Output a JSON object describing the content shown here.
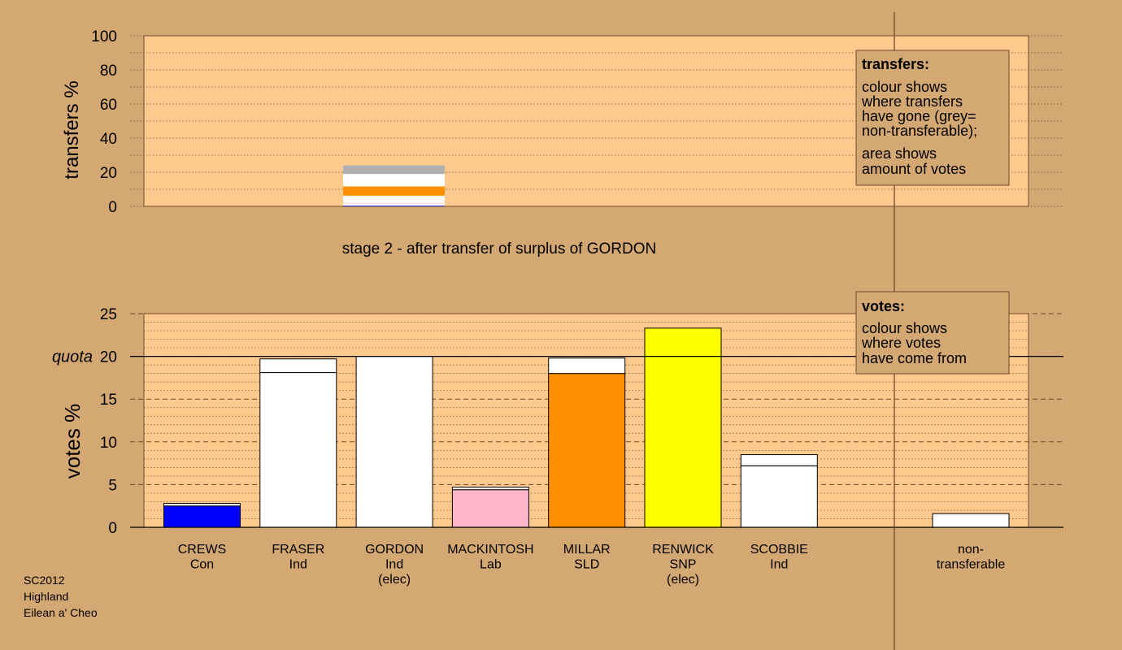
{
  "chart_data": {
    "type": "bar",
    "stage_title": "stage 2 - after transfer of surplus of GORDON",
    "colors": {
      "background": "#d4a872",
      "panel": "#fec98c",
      "outline": "#6e4a2e",
      "grey": "#b0b0b0",
      "white": "#ffffff"
    },
    "transfers_chart": {
      "ylabel": "transfers %",
      "ylim": [
        0,
        100
      ],
      "yticks": [
        "0",
        "20",
        "40",
        "60",
        "80",
        "100"
      ],
      "source": "GORDON",
      "segments": [
        {
          "recipient": "CREWS",
          "value": 0.4,
          "color": "#0000ff"
        },
        {
          "recipient": "FRASER",
          "value": 1.4,
          "color": "#ffffff"
        },
        {
          "recipient": "MACKINTOSH",
          "value": 0.3,
          "color": "#ffb6c8"
        },
        {
          "recipient": "MILLAR",
          "value": 4.2,
          "color": "#ffffff"
        },
        {
          "recipient": "MILLAR",
          "value": 5.4,
          "color": "#ff9000"
        },
        {
          "recipient": "SCOBBIE",
          "value": 3.6,
          "color": "#ffffff"
        },
        {
          "recipient": "non-transferable",
          "value": 1.6,
          "color": "#ffffff"
        },
        {
          "recipient": "non-transferable",
          "value": 2.1,
          "color": "#ffffff"
        },
        {
          "recipient": "non-transferable",
          "value": 5.0,
          "color": "#b0b0b0"
        }
      ],
      "legend": {
        "title": "transfers:",
        "lines": [
          "colour shows",
          "where transfers",
          "have gone (grey=",
          "non-transferable);",
          "area shows",
          "amount of votes"
        ]
      }
    },
    "votes_chart": {
      "ylabel": "votes %",
      "ylim": [
        0,
        25
      ],
      "yticks": [
        "0",
        "5",
        "10",
        "15",
        "20",
        "25"
      ],
      "quota": 20,
      "quota_label": "quota",
      "candidates": [
        {
          "name": "CREWS",
          "party": "Con",
          "elected": "",
          "color": "#0000ff",
          "base": 2.5,
          "transfer": 0.3
        },
        {
          "name": "FRASER",
          "party": "Ind",
          "elected": "",
          "color": "#ffffff",
          "base": 18.1,
          "transfer": 1.6
        },
        {
          "name": "GORDON",
          "party": "Ind",
          "elected": "(elec)",
          "color": "#ffffff",
          "base": 20.0,
          "transfer": 0
        },
        {
          "name": "MACKINTOSH",
          "party": "Lab",
          "elected": "",
          "color": "#ffb6c8",
          "base": 4.4,
          "transfer": 0.3
        },
        {
          "name": "MILLAR",
          "party": "SLD",
          "elected": "",
          "color": "#ff9000",
          "base": 18.0,
          "transfer": 1.8
        },
        {
          "name": "RENWICK",
          "party": "SNP",
          "elected": "(elec)",
          "color": "#ffff00",
          "base": 23.3,
          "transfer": 0
        },
        {
          "name": "SCOBBIE",
          "party": "Ind",
          "elected": "",
          "color": "#ffffff",
          "base": 7.2,
          "transfer": 1.3
        }
      ],
      "nontransferable": {
        "label_line1": "non-",
        "label_line2": "transferable",
        "value": 1.6,
        "color": "#ffffff"
      },
      "legend": {
        "title": "votes:",
        "lines": [
          "colour shows",
          "where votes",
          "have come from"
        ]
      }
    }
  },
  "footer": {
    "line1": "SC2012",
    "line2": "Highland",
    "line3": "Eilean a' Cheo"
  }
}
